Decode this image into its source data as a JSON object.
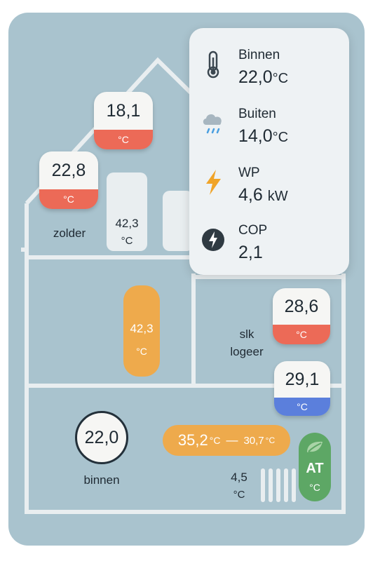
{
  "colors": {
    "background": "#a9c3ce",
    "red": "#ec6a57",
    "blue": "#5b7fdc",
    "orange": "#eeaa4c",
    "green": "#5da765",
    "panel": "#eef2f4"
  },
  "attic": {
    "badge_top": {
      "value": "18,1",
      "unit": "°C"
    },
    "badge_left": {
      "value": "22,8",
      "unit": "°C"
    },
    "label": "zolder",
    "radiator_value": "42,3",
    "radiator_unit": "°C"
  },
  "middle": {
    "pill": {
      "value": "42,3",
      "unit": "°C"
    },
    "room_line1": "slk",
    "room_line2": "logeer",
    "badge_red": {
      "value": "28,6",
      "unit": "°C"
    },
    "badge_blue": {
      "value": "29,1",
      "unit": "°C"
    }
  },
  "ground": {
    "circle_value": "22,0",
    "circle_label": "binnen",
    "flow": {
      "supply": "35,2",
      "supply_unit": "°C",
      "dash": "—",
      "return": "30,7",
      "return_unit": "°C"
    },
    "radiator_value": "4,5",
    "radiator_unit": "°C",
    "at": {
      "label": "AT",
      "unit": "°C"
    }
  },
  "panel": {
    "stats": [
      {
        "icon": "thermometer-icon",
        "label": "Binnen",
        "value": "22,0",
        "unit": "°C"
      },
      {
        "icon": "cloud-rain-icon",
        "label": "Buiten",
        "value": "14,0",
        "unit": "°C"
      },
      {
        "icon": "lightning-icon",
        "label": "WP",
        "value": "4,6",
        "unit": "kW"
      },
      {
        "icon": "cop-bolt-icon",
        "label": "COP",
        "value": "2,1",
        "unit": ""
      }
    ]
  }
}
